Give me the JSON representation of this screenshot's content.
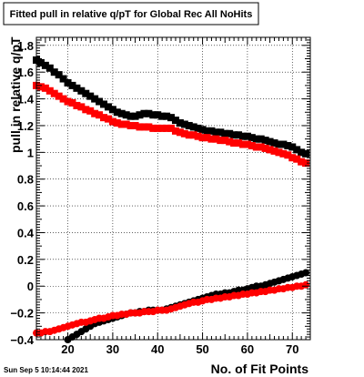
{
  "chart_data": {
    "type": "scatter",
    "title": "Fitted pull in relative q/pT for Global Rec All NoHits",
    "xlabel": "No. of Fit Points",
    "ylabel": "pull in relative q/pT",
    "xlim": [
      13,
      74
    ],
    "ylim": [
      -0.4,
      1.86
    ],
    "xticks": [
      20,
      30,
      40,
      50,
      60,
      70
    ],
    "yticks": [
      -0.4,
      -0.2,
      0,
      0.2,
      0.4,
      0.6,
      0.8,
      1,
      1.2,
      1.4,
      1.6,
      1.8
    ],
    "ytick_labels": [
      "−0.4",
      "−0.2",
      "0",
      "0.2",
      "0.4",
      "0.6",
      "0.8",
      "1",
      "1.2",
      "1.4",
      "1.6",
      "1.8"
    ],
    "grid": true,
    "timestamp": "Sun Sep  5 10:14:44 2021",
    "series": [
      {
        "marker": "square",
        "color": "#000000",
        "x": [
          13,
          14,
          15,
          16,
          17,
          18,
          19,
          20,
          21,
          22,
          23,
          24,
          25,
          26,
          27,
          28,
          29,
          30,
          31,
          32,
          33,
          34,
          35,
          36,
          37,
          38,
          39,
          40,
          41,
          42,
          43,
          44,
          45,
          46,
          47,
          48,
          49,
          50,
          51,
          52,
          53,
          54,
          55,
          56,
          57,
          58,
          59,
          60,
          61,
          62,
          63,
          64,
          65,
          66,
          67,
          68,
          69,
          70,
          71,
          72,
          73
        ],
        "y": [
          1.69,
          1.67,
          1.65,
          1.63,
          1.6,
          1.58,
          1.55,
          1.52,
          1.5,
          1.48,
          1.46,
          1.44,
          1.42,
          1.4,
          1.38,
          1.36,
          1.34,
          1.32,
          1.3,
          1.29,
          1.28,
          1.27,
          1.27,
          1.28,
          1.29,
          1.29,
          1.28,
          1.28,
          1.27,
          1.27,
          1.26,
          1.24,
          1.22,
          1.21,
          1.2,
          1.19,
          1.18,
          1.17,
          1.16,
          1.16,
          1.15,
          1.15,
          1.14,
          1.14,
          1.13,
          1.13,
          1.12,
          1.12,
          1.11,
          1.1,
          1.1,
          1.09,
          1.08,
          1.07,
          1.06,
          1.06,
          1.05,
          1.04,
          1.02,
          1.0,
          0.99
        ]
      },
      {
        "marker": "square",
        "color": "#ff0000",
        "x": [
          13,
          14,
          15,
          16,
          17,
          18,
          19,
          20,
          21,
          22,
          23,
          24,
          25,
          26,
          27,
          28,
          29,
          30,
          31,
          32,
          33,
          34,
          35,
          36,
          37,
          38,
          39,
          40,
          41,
          42,
          43,
          44,
          45,
          46,
          47,
          48,
          49,
          50,
          51,
          52,
          53,
          54,
          55,
          56,
          57,
          58,
          59,
          60,
          61,
          62,
          63,
          64,
          65,
          66,
          67,
          68,
          69,
          70,
          71,
          72,
          73
        ],
        "y": [
          1.5,
          1.49,
          1.48,
          1.46,
          1.44,
          1.42,
          1.4,
          1.38,
          1.37,
          1.35,
          1.34,
          1.32,
          1.31,
          1.29,
          1.28,
          1.26,
          1.25,
          1.23,
          1.22,
          1.21,
          1.21,
          1.2,
          1.2,
          1.19,
          1.19,
          1.19,
          1.18,
          1.18,
          1.18,
          1.18,
          1.18,
          1.16,
          1.15,
          1.14,
          1.13,
          1.13,
          1.12,
          1.11,
          1.11,
          1.1,
          1.1,
          1.09,
          1.09,
          1.08,
          1.07,
          1.07,
          1.06,
          1.06,
          1.05,
          1.04,
          1.04,
          1.03,
          1.02,
          1.01,
          1.0,
          0.99,
          0.98,
          0.96,
          0.95,
          0.93,
          0.92
        ]
      },
      {
        "marker": "circle",
        "color": "#000000",
        "x": [
          20,
          21,
          22,
          23,
          24,
          25,
          26,
          27,
          28,
          29,
          30,
          31,
          32,
          33,
          34,
          35,
          36,
          37,
          38,
          39,
          40,
          41,
          42,
          43,
          44,
          45,
          46,
          47,
          48,
          49,
          50,
          51,
          52,
          53,
          54,
          55,
          56,
          57,
          58,
          59,
          60,
          61,
          62,
          63,
          64,
          65,
          66,
          67,
          68,
          69,
          70,
          71,
          72,
          73
        ],
        "y": [
          -0.4,
          -0.38,
          -0.36,
          -0.34,
          -0.32,
          -0.3,
          -0.28,
          -0.27,
          -0.26,
          -0.25,
          -0.24,
          -0.23,
          -0.22,
          -0.21,
          -0.2,
          -0.2,
          -0.19,
          -0.19,
          -0.18,
          -0.18,
          -0.18,
          -0.18,
          -0.17,
          -0.16,
          -0.15,
          -0.14,
          -0.13,
          -0.12,
          -0.11,
          -0.1,
          -0.09,
          -0.08,
          -0.07,
          -0.06,
          -0.06,
          -0.05,
          -0.05,
          -0.04,
          -0.03,
          -0.03,
          -0.02,
          -0.01,
          0.0,
          0.0,
          0.01,
          0.02,
          0.03,
          0.04,
          0.05,
          0.06,
          0.07,
          0.08,
          0.09,
          0.1
        ]
      },
      {
        "marker": "circle",
        "color": "#ff0000",
        "x": [
          13,
          14,
          15,
          16,
          17,
          18,
          19,
          20,
          21,
          22,
          23,
          24,
          25,
          26,
          27,
          28,
          29,
          30,
          31,
          32,
          33,
          34,
          35,
          36,
          37,
          38,
          39,
          40,
          41,
          42,
          43,
          44,
          45,
          46,
          47,
          48,
          49,
          50,
          51,
          52,
          53,
          54,
          55,
          56,
          57,
          58,
          59,
          60,
          61,
          62,
          63,
          64,
          65,
          66,
          67,
          68,
          69,
          70,
          71,
          72,
          73
        ],
        "y": [
          -0.35,
          -0.35,
          -0.34,
          -0.34,
          -0.33,
          -0.32,
          -0.31,
          -0.3,
          -0.29,
          -0.28,
          -0.27,
          -0.27,
          -0.26,
          -0.25,
          -0.24,
          -0.24,
          -0.23,
          -0.22,
          -0.22,
          -0.21,
          -0.21,
          -0.2,
          -0.2,
          -0.2,
          -0.19,
          -0.19,
          -0.19,
          -0.18,
          -0.18,
          -0.18,
          -0.17,
          -0.16,
          -0.15,
          -0.14,
          -0.13,
          -0.12,
          -0.12,
          -0.11,
          -0.1,
          -0.1,
          -0.09,
          -0.09,
          -0.08,
          -0.08,
          -0.07,
          -0.07,
          -0.06,
          -0.06,
          -0.05,
          -0.05,
          -0.04,
          -0.04,
          -0.03,
          -0.03,
          -0.02,
          -0.02,
          -0.01,
          -0.01,
          0.0,
          0.0,
          0.01
        ]
      }
    ]
  }
}
